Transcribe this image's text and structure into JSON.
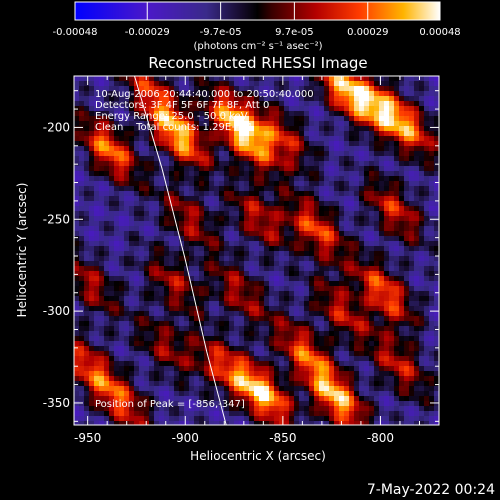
{
  "chart_data": {
    "type": "heatmap",
    "title": "Reconstructed RHESSI Image",
    "xlabel": "Heliocentric X (arcsec)",
    "ylabel": "Heliocentric Y (arcsec)",
    "xlim": [
      -957,
      -770
    ],
    "ylim": [
      -362,
      -172
    ],
    "x_ticks": [
      "-950",
      "-900",
      "-850",
      "-800"
    ],
    "x_tick_values": [
      -950,
      -900,
      -850,
      -800
    ],
    "y_ticks": [
      "-200",
      "-250",
      "-300",
      "-350"
    ],
    "y_tick_values": [
      -200,
      -250,
      -300,
      -350
    ],
    "colorbar": {
      "tick_labels": [
        "-0.00048",
        "-0.00029",
        "-9.7e-05",
        "9.7e-05",
        "0.00029",
        "0.00048"
      ],
      "tick_values": [
        -0.00048,
        -0.00029,
        -9.7e-05,
        9.7e-05,
        0.00029,
        0.00048
      ],
      "range": [
        -0.00048,
        0.00048
      ],
      "unit_label": "(photons cm⁻² s⁻¹ asec⁻²)"
    },
    "annotations": [
      "10-Aug-2006 20:44:40.000 to 20:50:40.000",
      "Detectors: 3F 4F 5F 6F 7F 8F, Att 0",
      "Energy Range: 25.0 - 50.0 keV",
      "Clean    Total counts: 1.29E+04"
    ],
    "peak_label": "Position of Peak = [-856,-347]",
    "peak": [
      -856,
      -347
    ],
    "limb_curve": [
      [
        -926,
        -172
      ],
      [
        -912,
        -222
      ],
      [
        -900,
        -272
      ],
      [
        -889,
        -322
      ],
      [
        -879,
        -362
      ]
    ],
    "hot_regions": [
      {
        "x": -939,
        "y": -212,
        "v": 0.8
      },
      {
        "x": -949,
        "y": -285,
        "v": 0.5
      },
      {
        "x": -950,
        "y": -330,
        "v": 0.6
      },
      {
        "x": -918,
        "y": -180,
        "v": 0.55
      },
      {
        "x": -903,
        "y": -205,
        "v": 0.9
      },
      {
        "x": -875,
        "y": -195,
        "v": 0.75
      },
      {
        "x": -866,
        "y": -210,
        "v": 0.55
      },
      {
        "x": -850,
        "y": -205,
        "v": 0.55
      },
      {
        "x": -818,
        "y": -180,
        "v": 0.85
      },
      {
        "x": -800,
        "y": -190,
        "v": 0.65
      },
      {
        "x": -785,
        "y": -200,
        "v": 0.6
      },
      {
        "x": -898,
        "y": -250,
        "v": 0.5
      },
      {
        "x": -862,
        "y": -250,
        "v": 0.55
      },
      {
        "x": -833,
        "y": -255,
        "v": 0.7
      },
      {
        "x": -793,
        "y": -245,
        "v": 0.6
      },
      {
        "x": -906,
        "y": -285,
        "v": 0.5
      },
      {
        "x": -872,
        "y": -290,
        "v": 0.5
      },
      {
        "x": -820,
        "y": -300,
        "v": 0.55
      },
      {
        "x": -798,
        "y": -290,
        "v": 0.75
      },
      {
        "x": -910,
        "y": -320,
        "v": 0.45
      },
      {
        "x": -881,
        "y": -330,
        "v": 0.55
      },
      {
        "x": -860,
        "y": -345,
        "v": 0.95
      },
      {
        "x": -839,
        "y": -322,
        "v": 0.65
      },
      {
        "x": -822,
        "y": -348,
        "v": 0.9
      },
      {
        "x": -790,
        "y": -330,
        "v": 0.55
      },
      {
        "x": -932,
        "y": -350,
        "v": 0.6
      }
    ]
  },
  "footer": {
    "timestamp": "7-May-2022 00:24"
  }
}
